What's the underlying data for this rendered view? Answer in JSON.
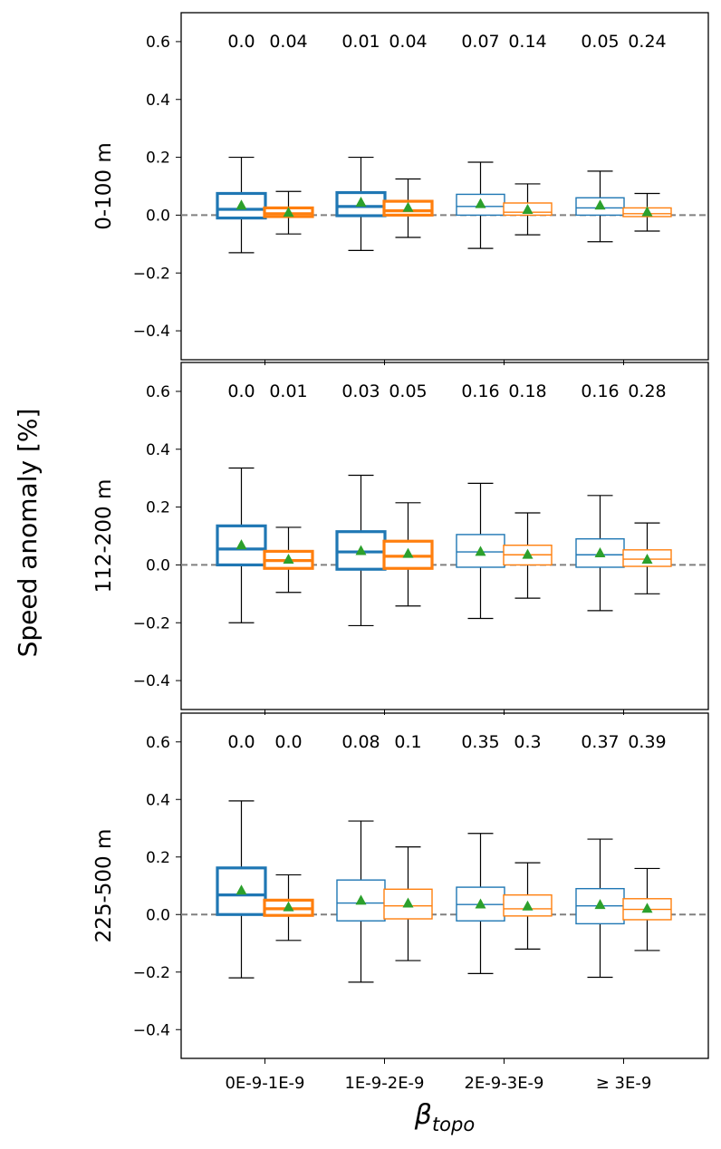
{
  "chart_data": {
    "type": "boxplot",
    "ylabel": "Speed anomaly [%]",
    "xlabel_base": "β",
    "xlabel_sub": "topo",
    "categories": [
      "0E-9-1E-9",
      "1E-9-2E-9",
      "2E-9-3E-9",
      "≥  3E-9"
    ],
    "ylim": [
      -0.5,
      0.7
    ],
    "yticks": [
      -0.4,
      -0.2,
      0.0,
      0.2,
      0.4,
      0.6
    ],
    "ytick_labels": [
      "−0.4",
      "−0.2",
      "0.0",
      "0.2",
      "0.4",
      "0.6"
    ],
    "reference_line": 0.0,
    "colors": {
      "series_a": "#1f77b4",
      "series_b": "#ff7f0e",
      "mean_marker": "#2ca02c",
      "reference": "#808080"
    },
    "panels": [
      {
        "label": "0-100 m",
        "annotations": [
          [
            "0.0",
            "0.04"
          ],
          [
            "0.01",
            "0.04"
          ],
          [
            "0.07",
            "0.14"
          ],
          [
            "0.05",
            "0.24"
          ]
        ],
        "boxes": [
          [
            {
              "q1": -0.01,
              "median": 0.02,
              "q3": 0.075,
              "whisker_low": -0.13,
              "whisker_high": 0.2,
              "mean": 0.035,
              "bold": true
            },
            {
              "q1": -0.005,
              "median": 0.005,
              "q3": 0.025,
              "whisker_low": -0.065,
              "whisker_high": 0.082,
              "mean": 0.01,
              "bold": true
            }
          ],
          [
            {
              "q1": -0.002,
              "median": 0.03,
              "q3": 0.078,
              "whisker_low": -0.122,
              "whisker_high": 0.2,
              "mean": 0.045,
              "bold": true
            },
            {
              "q1": 0.0,
              "median": 0.015,
              "q3": 0.048,
              "whisker_low": -0.077,
              "whisker_high": 0.125,
              "mean": 0.027,
              "bold": true
            }
          ],
          [
            {
              "q1": 0.0,
              "median": 0.03,
              "q3": 0.072,
              "whisker_low": -0.115,
              "whisker_high": 0.183,
              "mean": 0.04,
              "bold": false
            },
            {
              "q1": 0.0,
              "median": 0.01,
              "q3": 0.042,
              "whisker_low": -0.068,
              "whisker_high": 0.108,
              "mean": 0.02,
              "bold": false
            }
          ],
          [
            {
              "q1": 0.0,
              "median": 0.025,
              "q3": 0.06,
              "whisker_low": -0.092,
              "whisker_high": 0.152,
              "mean": 0.035,
              "bold": false
            },
            {
              "q1": -0.005,
              "median": 0.005,
              "q3": 0.025,
              "whisker_low": -0.055,
              "whisker_high": 0.075,
              "mean": 0.012,
              "bold": false
            }
          ]
        ]
      },
      {
        "label": "112-200 m",
        "annotations": [
          [
            "0.0",
            "0.01"
          ],
          [
            "0.03",
            "0.05"
          ],
          [
            "0.16",
            "0.18"
          ],
          [
            "0.16",
            "0.28"
          ]
        ],
        "boxes": [
          [
            {
              "q1": 0.0,
              "median": 0.055,
              "q3": 0.135,
              "whisker_low": -0.2,
              "whisker_high": 0.335,
              "mean": 0.07,
              "bold": true
            },
            {
              "q1": -0.012,
              "median": 0.015,
              "q3": 0.047,
              "whisker_low": -0.095,
              "whisker_high": 0.13,
              "mean": 0.02,
              "bold": true
            }
          ],
          [
            {
              "q1": -0.015,
              "median": 0.045,
              "q3": 0.115,
              "whisker_low": -0.21,
              "whisker_high": 0.31,
              "mean": 0.05,
              "bold": true
            },
            {
              "q1": -0.012,
              "median": 0.03,
              "q3": 0.082,
              "whisker_low": -0.142,
              "whisker_high": 0.215,
              "mean": 0.04,
              "bold": true
            }
          ],
          [
            {
              "q1": -0.008,
              "median": 0.045,
              "q3": 0.105,
              "whisker_low": -0.185,
              "whisker_high": 0.282,
              "mean": 0.047,
              "bold": false
            },
            {
              "q1": 0.0,
              "median": 0.035,
              "q3": 0.068,
              "whisker_low": -0.115,
              "whisker_high": 0.18,
              "mean": 0.037,
              "bold": false
            }
          ],
          [
            {
              "q1": -0.008,
              "median": 0.035,
              "q3": 0.09,
              "whisker_low": -0.158,
              "whisker_high": 0.24,
              "mean": 0.042,
              "bold": false
            },
            {
              "q1": -0.005,
              "median": 0.02,
              "q3": 0.052,
              "whisker_low": -0.1,
              "whisker_high": 0.145,
              "mean": 0.02,
              "bold": false
            }
          ]
        ]
      },
      {
        "label": "225-500 m",
        "annotations": [
          [
            "0.0",
            "0.0"
          ],
          [
            "0.08",
            "0.1"
          ],
          [
            "0.35",
            "0.3"
          ],
          [
            "0.37",
            "0.39"
          ]
        ],
        "boxes": [
          [
            {
              "q1": 0.0,
              "median": 0.068,
              "q3": 0.162,
              "whisker_low": -0.22,
              "whisker_high": 0.395,
              "mean": 0.085,
              "bold": true
            },
            {
              "q1": -0.003,
              "median": 0.02,
              "q3": 0.05,
              "whisker_low": -0.09,
              "whisker_high": 0.138,
              "mean": 0.027,
              "bold": true
            }
          ],
          [
            {
              "q1": -0.022,
              "median": 0.04,
              "q3": 0.12,
              "whisker_low": -0.235,
              "whisker_high": 0.325,
              "mean": 0.05,
              "bold": false
            },
            {
              "q1": -0.015,
              "median": 0.03,
              "q3": 0.088,
              "whisker_low": -0.16,
              "whisker_high": 0.235,
              "mean": 0.04,
              "bold": false
            }
          ],
          [
            {
              "q1": -0.022,
              "median": 0.035,
              "q3": 0.095,
              "whisker_low": -0.205,
              "whisker_high": 0.282,
              "mean": 0.037,
              "bold": false
            },
            {
              "q1": -0.005,
              "median": 0.02,
              "q3": 0.068,
              "whisker_low": -0.12,
              "whisker_high": 0.18,
              "mean": 0.03,
              "bold": false
            }
          ],
          [
            {
              "q1": -0.032,
              "median": 0.03,
              "q3": 0.09,
              "whisker_low": -0.218,
              "whisker_high": 0.262,
              "mean": 0.035,
              "bold": false
            },
            {
              "q1": -0.018,
              "median": 0.018,
              "q3": 0.055,
              "whisker_low": -0.125,
              "whisker_high": 0.16,
              "mean": 0.022,
              "bold": false
            }
          ]
        ]
      }
    ]
  }
}
